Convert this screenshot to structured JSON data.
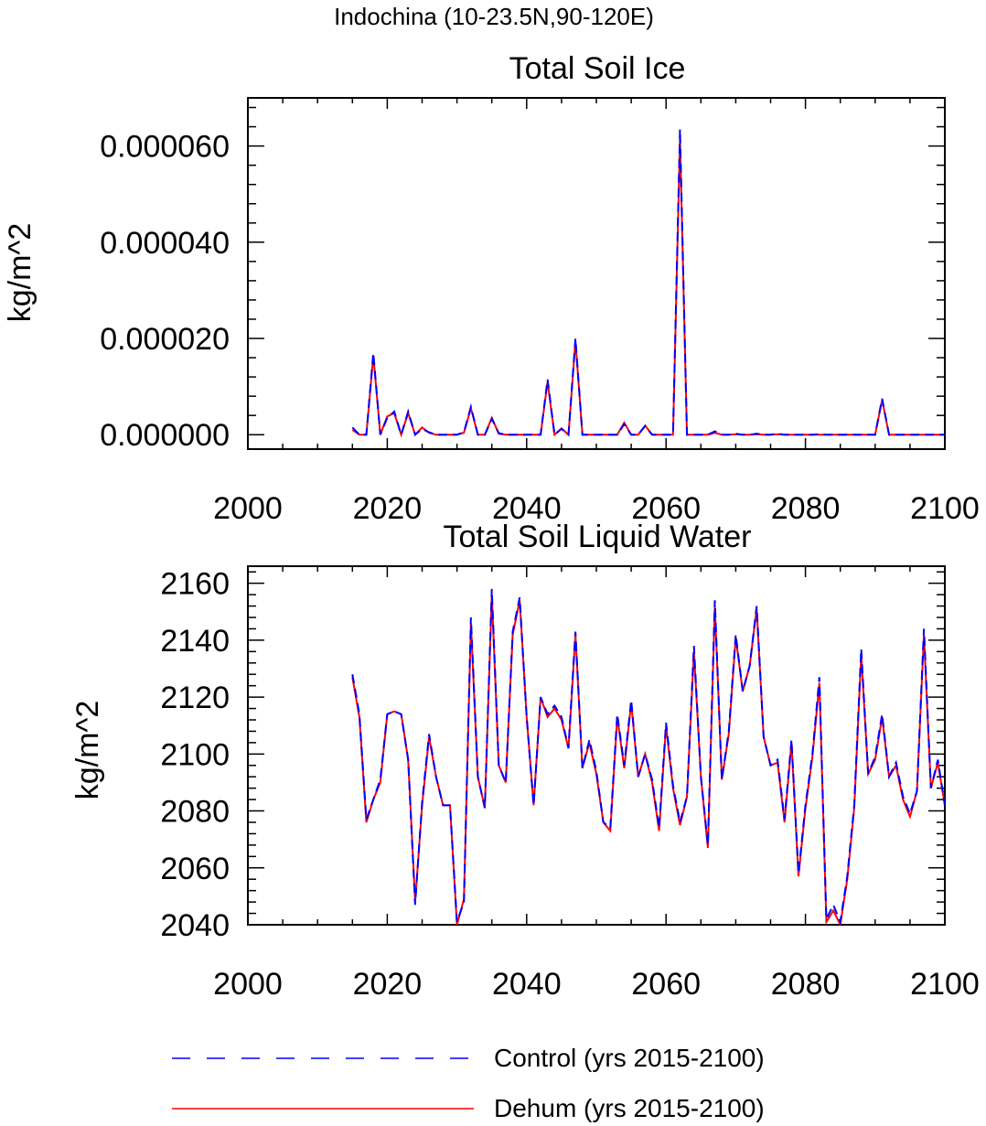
{
  "figure_title": "Indochina (10-23.5N,90-120E)",
  "legend": {
    "entries": [
      {
        "label": "Control (yrs 2015-2100)",
        "color": "#0000ff",
        "style": "dashed"
      },
      {
        "label": "Dehum (yrs 2015-2100)",
        "color": "#ff0000",
        "style": "solid"
      }
    ]
  },
  "chart_data": [
    {
      "type": "line",
      "title": "Total Soil Ice",
      "xlabel": "",
      "ylabel": "kg/m^2",
      "xlim": [
        2000,
        2100
      ],
      "ylim": [
        -3e-06,
        7e-05
      ],
      "xticks": [
        2000,
        2020,
        2040,
        2060,
        2080,
        2100
      ],
      "xtick_labels": [
        "2000",
        "2020",
        "2040",
        "2060",
        "2080",
        "2100"
      ],
      "yticks": [
        0,
        2e-05,
        4e-05,
        6e-05
      ],
      "ytick_labels": [
        "0.000000",
        "0.000020",
        "0.000040",
        "0.000060"
      ],
      "grid": false,
      "x": [
        2015,
        2016,
        2017,
        2018,
        2019,
        2020,
        2021,
        2022,
        2023,
        2024,
        2025,
        2026,
        2027,
        2028,
        2029,
        2030,
        2031,
        2032,
        2033,
        2034,
        2035,
        2036,
        2037,
        2038,
        2039,
        2040,
        2041,
        2042,
        2043,
        2044,
        2045,
        2046,
        2047,
        2048,
        2049,
        2050,
        2051,
        2052,
        2053,
        2054,
        2055,
        2056,
        2057,
        2058,
        2059,
        2060,
        2061,
        2062,
        2063,
        2064,
        2065,
        2066,
        2067,
        2068,
        2069,
        2070,
        2071,
        2072,
        2073,
        2074,
        2075,
        2076,
        2077,
        2078,
        2079,
        2080,
        2081,
        2082,
        2083,
        2084,
        2085,
        2086,
        2087,
        2088,
        2089,
        2090,
        2091,
        2092,
        2093,
        2094,
        2095,
        2096,
        2097,
        2098,
        2099,
        2100
      ],
      "series": [
        {
          "name": "Control (yrs 2015-2100)",
          "color": "#0000ff",
          "style": "dashed",
          "values": [
            1.5e-06,
            0,
            0,
            1.7e-05,
            0,
            3.5e-06,
            4.8e-06,
            0,
            4.8e-06,
            0,
            1.2e-06,
            5e-07,
            0,
            0,
            0,
            0,
            5e-07,
            5.8e-06,
            0,
            0,
            3.3e-06,
            3e-07,
            0,
            0,
            0,
            0,
            0,
            0,
            1.15e-05,
            0,
            1.2e-06,
            0,
            2e-05,
            0,
            0,
            0,
            0,
            0,
            0,
            2.2e-06,
            0,
            0,
            1.8e-06,
            0,
            0,
            0,
            0,
            6.35e-05,
            0,
            0,
            0,
            0,
            7e-07,
            0,
            0,
            2e-07,
            0,
            0,
            2e-07,
            0,
            0,
            2e-07,
            0,
            0,
            0,
            0,
            0,
            1e-07,
            0,
            0,
            0,
            0,
            0,
            0,
            0,
            0,
            7.5e-06,
            0,
            0,
            0,
            0,
            0,
            0,
            0,
            0,
            0
          ]
        },
        {
          "name": "Dehum (yrs 2015-2100)",
          "color": "#ff0000",
          "style": "solid",
          "values": [
            1e-06,
            0,
            0,
            1.65e-05,
            0,
            3.8e-06,
            4.5e-06,
            0,
            4.5e-06,
            0,
            1.5e-06,
            4e-07,
            0,
            0,
            0,
            0,
            4e-07,
            5.5e-06,
            0,
            0,
            3.5e-06,
            2e-07,
            0,
            0,
            0,
            0,
            0,
            0,
            1.1e-05,
            0,
            1.3e-06,
            0,
            1.95e-05,
            0,
            0,
            0,
            0,
            0,
            0,
            2.5e-06,
            0,
            0,
            1.9e-06,
            0,
            0,
            0,
            0,
            6.15e-05,
            0,
            0,
            0,
            0,
            4e-07,
            0,
            0,
            1e-07,
            0,
            0,
            1e-07,
            0,
            0,
            1e-07,
            0,
            0,
            0,
            0,
            0,
            0,
            0,
            0,
            0,
            0,
            0,
            0,
            0,
            0,
            7.2e-06,
            0,
            0,
            0,
            0,
            0,
            0,
            0,
            0,
            0
          ]
        }
      ]
    },
    {
      "type": "line",
      "title": "Total Soil Liquid Water",
      "xlabel": "",
      "ylabel": "kg/m^2",
      "xlim": [
        2000,
        2100
      ],
      "ylim": [
        2040,
        2166
      ],
      "xticks": [
        2000,
        2020,
        2040,
        2060,
        2080,
        2100
      ],
      "xtick_labels": [
        "2000",
        "2020",
        "2040",
        "2060",
        "2080",
        "2100"
      ],
      "yticks": [
        2040,
        2060,
        2080,
        2100,
        2120,
        2140,
        2160
      ],
      "ytick_labels": [
        "2040",
        "2060",
        "2080",
        "2100",
        "2120",
        "2140",
        "2160"
      ],
      "grid": false,
      "x": [
        2015,
        2016,
        2017,
        2018,
        2019,
        2020,
        2021,
        2022,
        2023,
        2024,
        2025,
        2026,
        2027,
        2028,
        2029,
        2030,
        2031,
        2032,
        2033,
        2034,
        2035,
        2036,
        2037,
        2038,
        2039,
        2040,
        2041,
        2042,
        2043,
        2044,
        2045,
        2046,
        2047,
        2048,
        2049,
        2050,
        2051,
        2052,
        2053,
        2054,
        2055,
        2056,
        2057,
        2058,
        2059,
        2060,
        2061,
        2062,
        2063,
        2064,
        2065,
        2066,
        2067,
        2068,
        2069,
        2070,
        2071,
        2072,
        2073,
        2074,
        2075,
        2076,
        2077,
        2078,
        2079,
        2080,
        2081,
        2082,
        2083,
        2084,
        2085,
        2086,
        2087,
        2088,
        2089,
        2090,
        2091,
        2092,
        2093,
        2094,
        2095,
        2096,
        2097,
        2098,
        2099,
        2100
      ],
      "series": [
        {
          "name": "Control (yrs 2015-2100)",
          "color": "#0000ff",
          "style": "dashed",
          "values": [
            2128,
            2114,
            2077,
            2084,
            2091,
            2114,
            2115,
            2114,
            2098,
            2047,
            2083,
            2107,
            2092,
            2082,
            2082,
            2041,
            2048,
            2148,
            2092,
            2081,
            2158,
            2096,
            2090,
            2143,
            2155,
            2113,
            2082,
            2120,
            2114,
            2117,
            2113,
            2102,
            2143,
            2095,
            2105,
            2094,
            2076,
            2074,
            2114,
            2096,
            2119,
            2092,
            2100,
            2091,
            2074,
            2111,
            2089,
            2076,
            2085,
            2138,
            2092,
            2068,
            2154,
            2091,
            2108,
            2142,
            2122,
            2131,
            2152,
            2106,
            2096,
            2098,
            2077,
            2105,
            2058,
            2082,
            2100,
            2127,
            2042,
            2047,
            2041,
            2057,
            2082,
            2137,
            2093,
            2099,
            2114,
            2092,
            2097,
            2085,
            2079,
            2087,
            2144,
            2088,
            2098,
            2082
          ]
        },
        {
          "name": "Dehum (yrs 2015-2100)",
          "color": "#ff0000",
          "style": "solid",
          "values": [
            2127,
            2113,
            2076,
            2084,
            2090,
            2114,
            2115,
            2114,
            2098,
            2048,
            2082,
            2106,
            2092,
            2082,
            2082,
            2040,
            2049,
            2146,
            2092,
            2081,
            2156,
            2096,
            2090,
            2142,
            2154,
            2113,
            2082,
            2120,
            2113,
            2116,
            2112,
            2102,
            2142,
            2095,
            2104,
            2093,
            2076,
            2073,
            2113,
            2095,
            2118,
            2092,
            2100,
            2090,
            2073,
            2110,
            2088,
            2075,
            2085,
            2136,
            2092,
            2067,
            2152,
            2091,
            2107,
            2141,
            2122,
            2131,
            2151,
            2106,
            2096,
            2097,
            2076,
            2104,
            2057,
            2081,
            2099,
            2125,
            2041,
            2045,
            2040,
            2056,
            2081,
            2135,
            2093,
            2098,
            2113,
            2092,
            2096,
            2084,
            2078,
            2087,
            2142,
            2088,
            2097,
            2082
          ]
        }
      ]
    }
  ]
}
